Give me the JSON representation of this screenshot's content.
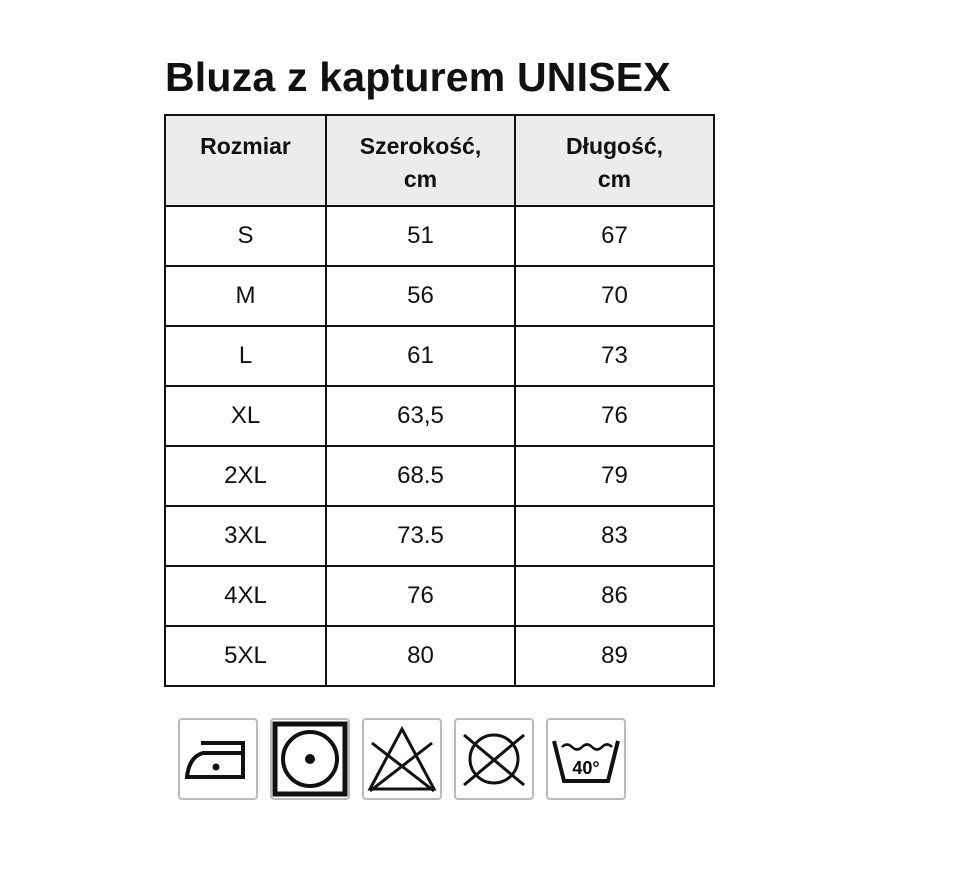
{
  "title": "Bluza z kapturem UNISEX",
  "table": {
    "headers": [
      "Rozmiar",
      "Szerokość,\ncm",
      "Długość,\ncm"
    ],
    "header_lines": [
      [
        "Rozmiar"
      ],
      [
        "Szerokość,",
        "cm"
      ],
      [
        "Długość,",
        "cm"
      ]
    ],
    "rows": [
      [
        "S",
        "51",
        "67"
      ],
      [
        "M",
        "56",
        "70"
      ],
      [
        "L",
        "61",
        "73"
      ],
      [
        "XL",
        "63,5",
        "76"
      ],
      [
        "2XL",
        "68.5",
        "79"
      ],
      [
        "3XL",
        "73.5",
        "83"
      ],
      [
        "4XL",
        "76",
        "86"
      ],
      [
        "5XL",
        "80",
        "89"
      ]
    ]
  },
  "care_icons": [
    {
      "icon": "iron-low-temp-icon"
    },
    {
      "icon": "tumble-dry-low-icon"
    },
    {
      "icon": "do-not-bleach-icon"
    },
    {
      "icon": "do-not-dry-clean-icon"
    },
    {
      "icon": "wash-40-icon",
      "label": "40°"
    }
  ]
}
